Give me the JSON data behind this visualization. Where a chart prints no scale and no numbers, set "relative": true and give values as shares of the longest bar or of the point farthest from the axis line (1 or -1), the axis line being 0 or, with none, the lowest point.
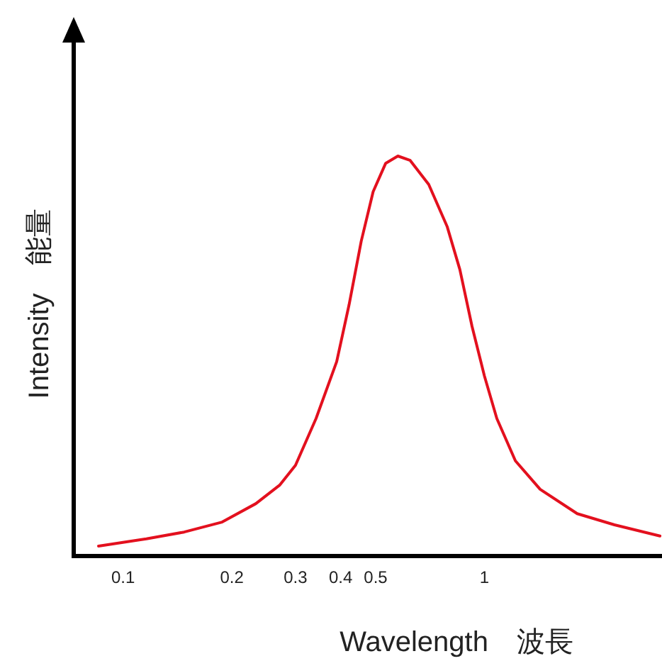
{
  "chart_data": {
    "type": "line",
    "xlabel": "Wavelength　波長",
    "ylabel": "Intensity　能量",
    "relative": true,
    "log": "x",
    "xlim": [
      0.073,
      3.1
    ],
    "xticks": [
      0.1,
      0.2,
      0.3,
      0.4,
      0.5,
      1
    ],
    "x": [
      0.0855,
      0.116,
      0.1476,
      0.188,
      0.233,
      0.271,
      0.3,
      0.342,
      0.39,
      0.422,
      0.456,
      0.492,
      0.533,
      0.576,
      0.623,
      0.701,
      0.789,
      0.855,
      0.924,
      1.0,
      1.082,
      1.218,
      1.426,
      1.806,
      2.29,
      3.06
    ],
    "series": [
      {
        "color": "#e3101e",
        "values": [
          0.025,
          0.043,
          0.06,
          0.085,
          0.131,
          0.177,
          0.227,
          0.344,
          0.486,
          0.628,
          0.787,
          0.911,
          0.982,
          1,
          0.989,
          0.929,
          0.823,
          0.716,
          0.574,
          0.45,
          0.344,
          0.238,
          0.167,
          0.106,
          0.078,
          0.05
        ]
      }
    ]
  }
}
